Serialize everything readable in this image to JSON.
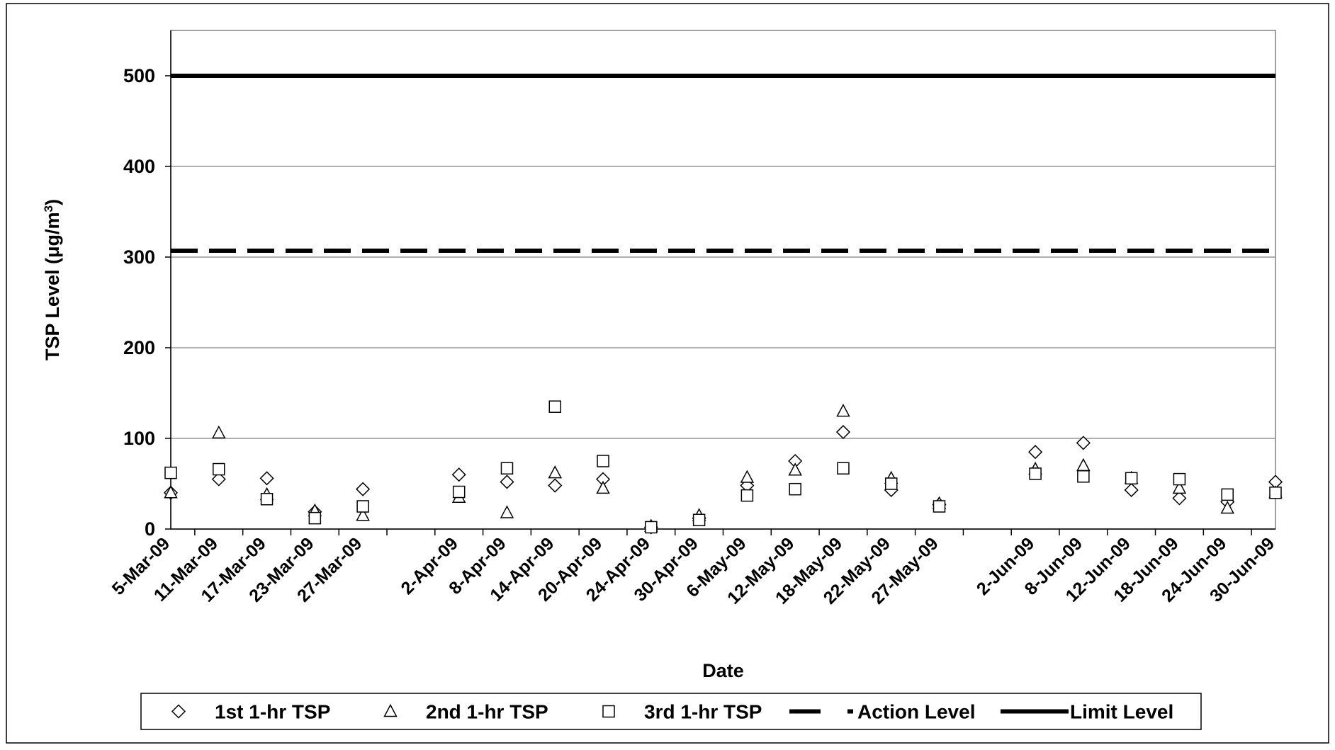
{
  "chart_data": {
    "type": "scatter",
    "title": "",
    "xlabel": "Date",
    "ylabel": "TSP Level  (μg/m",
    "ylabel_sup": "3",
    "ylabel_close": ")",
    "ylim": [
      0,
      550
    ],
    "yticks": [
      "0",
      "100",
      "200",
      "300",
      "400",
      "500"
    ],
    "ytick_values": [
      0,
      100,
      200,
      300,
      400,
      500
    ],
    "grid": "horizontal",
    "legend_position": "bottom",
    "categories": [
      "5-Mar-09",
      "11-Mar-09",
      "17-Mar-09",
      "23-Mar-09",
      "27-Mar-09",
      "",
      "2-Apr-09",
      "8-Apr-09",
      "14-Apr-09",
      "20-Apr-09",
      "24-Apr-09",
      "30-Apr-09",
      "6-May-09",
      "12-May-09",
      "18-May-09",
      "22-May-09",
      "27-May-09",
      "",
      "2-Jun-09",
      "8-Jun-09",
      "12-Jun-09",
      "18-Jun-09",
      "24-Jun-09",
      "30-Jun-09"
    ],
    "series": [
      {
        "name": "1st 1-hr TSP",
        "marker": "diamond",
        "values": [
          40,
          55,
          56,
          19,
          44,
          null,
          60,
          52,
          48,
          55,
          2,
          12,
          48,
          75,
          107,
          43,
          27,
          null,
          85,
          95,
          43,
          34,
          30,
          52
        ]
      },
      {
        "name": "2nd 1-hr TSP",
        "marker": "triangle",
        "values": [
          40,
          106,
          38,
          20,
          15,
          null,
          35,
          18,
          62,
          45,
          3,
          15,
          57,
          65,
          130,
          56,
          28,
          null,
          66,
          70,
          56,
          45,
          23,
          40
        ]
      },
      {
        "name": "3rd 1-hr TSP",
        "marker": "square",
        "values": [
          62,
          66,
          33,
          12,
          25,
          null,
          41,
          67,
          135,
          75,
          2,
          10,
          37,
          44,
          67,
          50,
          25,
          null,
          61,
          58,
          56,
          55,
          38,
          40
        ]
      }
    ],
    "reference_lines": [
      {
        "name": "Action Level",
        "value": 307,
        "style": "dashed"
      },
      {
        "name": "Limit Level",
        "value": 500,
        "style": "solid"
      }
    ]
  }
}
